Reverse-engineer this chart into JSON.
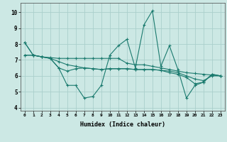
{
  "xlabel": "Humidex (Indice chaleur)",
  "background_color": "#cce8e4",
  "grid_color": "#aacfcc",
  "line_color": "#1a7a6e",
  "xlim": [
    -0.5,
    23.5
  ],
  "ylim": [
    3.8,
    10.6
  ],
  "yticks": [
    4,
    5,
    6,
    7,
    8,
    9,
    10
  ],
  "xtick_labels": [
    "0",
    "1",
    "2",
    "3",
    "4",
    "5",
    "6",
    "7",
    "8",
    "9",
    "10",
    "11",
    "12",
    "13",
    "14",
    "15",
    "16",
    "17",
    "18",
    "19",
    "20",
    "21",
    "22",
    "23"
  ],
  "series1": [
    8.1,
    7.3,
    7.2,
    7.1,
    6.5,
    5.4,
    5.4,
    4.6,
    4.7,
    5.4,
    7.3,
    7.9,
    8.3,
    6.5,
    9.2,
    10.1,
    6.6,
    7.9,
    6.4,
    4.6,
    5.4,
    5.6,
    6.1,
    6.0
  ],
  "series2": [
    7.3,
    7.3,
    7.2,
    7.15,
    7.1,
    7.1,
    7.1,
    7.1,
    7.1,
    7.1,
    7.1,
    7.1,
    6.8,
    6.7,
    6.7,
    6.6,
    6.5,
    6.4,
    6.3,
    6.2,
    6.15,
    6.1,
    6.05,
    6.0
  ],
  "series3": [
    7.3,
    7.3,
    7.2,
    7.1,
    6.9,
    6.7,
    6.6,
    6.5,
    6.45,
    6.4,
    6.45,
    6.45,
    6.45,
    6.4,
    6.4,
    6.4,
    6.35,
    6.3,
    6.2,
    6.0,
    5.8,
    5.7,
    6.0,
    6.0
  ],
  "series4": [
    8.1,
    7.3,
    7.2,
    7.1,
    6.5,
    6.3,
    6.45,
    6.5,
    6.45,
    6.4,
    6.45,
    6.45,
    6.45,
    6.4,
    6.4,
    6.4,
    6.35,
    6.2,
    6.1,
    5.9,
    5.5,
    5.6,
    6.1,
    6.0
  ]
}
